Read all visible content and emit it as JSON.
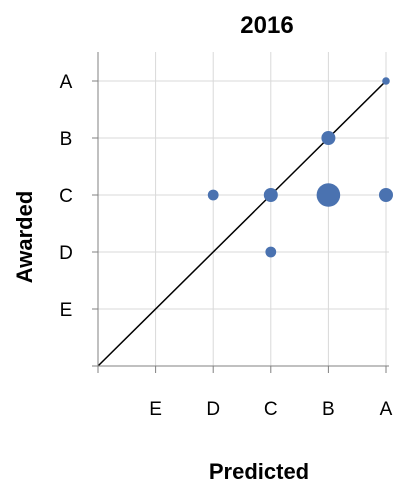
{
  "chart_data": {
    "type": "scatter",
    "title": "2016",
    "xlabel": "Predicted",
    "ylabel": "Awarded",
    "grades": [
      "",
      "E",
      "D",
      "C",
      "B",
      "A"
    ],
    "x_tick_labels": [
      "E",
      "D",
      "C",
      "B",
      "A"
    ],
    "y_tick_labels": [
      "A",
      "B",
      "C",
      "D",
      "E"
    ],
    "xlim": [
      0,
      5
    ],
    "ylim": [
      0,
      5
    ],
    "grid": true,
    "marker_color": "#4a72b0",
    "reference_line": {
      "from": [
        0,
        0
      ],
      "to": [
        5,
        5
      ],
      "color": "#000000"
    },
    "points": [
      {
        "x": 5,
        "y": 5,
        "size": 1
      },
      {
        "x": 4,
        "y": 4,
        "size": 3
      },
      {
        "x": 2,
        "y": 3,
        "size": 2
      },
      {
        "x": 3,
        "y": 3,
        "size": 3
      },
      {
        "x": 4,
        "y": 3,
        "size": 6
      },
      {
        "x": 5,
        "y": 3,
        "size": 3
      },
      {
        "x": 3,
        "y": 2,
        "size": 2
      }
    ]
  }
}
